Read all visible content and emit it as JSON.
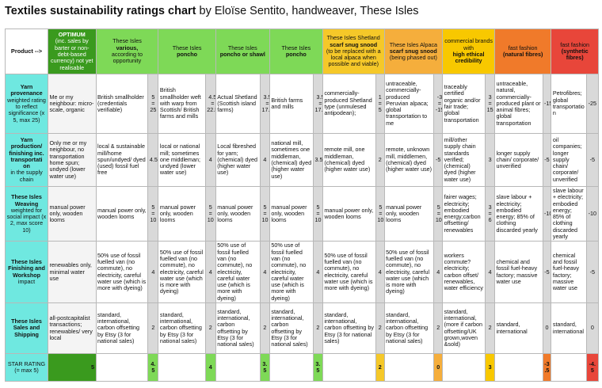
{
  "title": {
    "bold": "Textiles sustainability ratings chart",
    "rest": " by Eloïse Sentito, handweaver, These Isles"
  },
  "colors": {
    "row_label": "#6fe8e0",
    "optimum": "#3a9a1e",
    "green": "#7ed957",
    "yellow": "#f5c829",
    "amber": "#f5ae3c",
    "gold": "#f8c800",
    "orange": "#f07a2a",
    "red": "#e8463a"
  },
  "header": {
    "product_label": "Product -->",
    "columns": [
      {
        "lines": [
          "OPTIMUM",
          "(inc. sales by barter or non-debt-based currency) not yet realisable"
        ],
        "color": "#3a9a1e",
        "text_color": "#ffffff"
      },
      {
        "lines": [
          "These Isles",
          "various,",
          "according to opportunity"
        ],
        "color": "#7ed957"
      },
      {
        "lines": [
          "These Isles",
          "poncho"
        ],
        "color": "#7ed957"
      },
      {
        "lines": [
          "These Isles",
          "poncho or shawl"
        ],
        "color": "#7ed957"
      },
      {
        "lines": [
          "These Isles",
          "poncho"
        ],
        "color": "#7ed957"
      },
      {
        "lines": [
          "These Isles Shetland",
          "scarf snug snood",
          "(to be replaced with a local alpaca when possible and viable)"
        ],
        "color": "#f5c829"
      },
      {
        "lines": [
          "These Isles Alpaca",
          "scarf snug snood",
          "(being phased out)"
        ],
        "color": "#f5ae3c"
      },
      {
        "lines": [
          "commercial brands with",
          "high ethical credibility"
        ],
        "color": "#f8c800"
      },
      {
        "lines": [
          "fast fashion",
          "(natural fibres)"
        ],
        "color": "#f07a2a"
      },
      {
        "lines": [
          "fast fashion",
          "(synthetic fibres)"
        ],
        "color": "#e8463a"
      }
    ]
  },
  "rows": [
    {
      "label": "Yarn provenance",
      "sub": "weighted rating to reflect significance (x 5, max 25)",
      "cells": [
        {
          "text": "Me or my neighbour: micro-scale, organic",
          "score": ""
        },
        {
          "text": "British smallholder (credentials verifiable)",
          "score": "5 = 25"
        },
        {
          "text": "British smallholder weft with warp from Scottish/ British farms and mills",
          "score": "4.5 = 22.5"
        },
        {
          "text": "Actual Shetland (Scottish island farms)",
          "score": "3.5 = 17.5"
        },
        {
          "text": "British farms and mills",
          "score": "3.5 = 17.5"
        },
        {
          "text": "commercially-produced Shetland type (unmulesed antipodean);",
          "score": "1 = 5"
        },
        {
          "text": "untraceable, commercially-produced Peruvian alpaca; global transportation to me",
          "score": "-3 = -15"
        },
        {
          "text": "traceably certified organic and/or fair trade; global transportation",
          "score": "3 = 15"
        },
        {
          "text": "untraceable, natural, commercially-produced plant or animal fibres; global transportation",
          "score": "-15"
        },
        {
          "text": "Petrofibres; global transportation",
          "score": "-25"
        }
      ]
    },
    {
      "label": "Yarn production/ finishing inc. transportati on",
      "sub": "in the supply chain",
      "cells": [
        {
          "text": "Only me or my neighbour, no transportation home spun; undyed (lower water use)",
          "score": ""
        },
        {
          "text": "local & sustainable mill/home spun/undyed/ dyed (used) fossil fuel free",
          "score": "4.5"
        },
        {
          "text": "local or national mill; sometimes one middleman; undyed (lower water use)",
          "score": "4"
        },
        {
          "text": "Local fibreshed for yarn; (chemical) dyed (higher water use)",
          "score": "4"
        },
        {
          "text": "national mill, sometimes one middleman, (chemical) dyed (higher water use)",
          "score": "3.5"
        },
        {
          "text": "remote mill, one middleman, (chemical) dyed (higher water use)",
          "score": "2"
        },
        {
          "text": "remote, unknown mill, middlemen, (chemical) dyed (higher water use)",
          "score": "-5"
        },
        {
          "text": "mill/other supply chain standards verified; (chemical) dyed (higher water use)",
          "score": "3"
        },
        {
          "text": "longer supply chain/ corporate/ unverified",
          "score": "-5"
        },
        {
          "text": "oil companies; longer supply chain/ corporate/ unverified",
          "score": "-5"
        }
      ]
    },
    {
      "label": "These Isles Weaving",
      "sub": "weighted for social impact (x 2, max score 10)",
      "cells": [
        {
          "text": "manual power only, wooden looms",
          "score": ""
        },
        {
          "text": "manual power only, wooden looms",
          "score": "5 = 10"
        },
        {
          "text": "manual power only, wooden looms",
          "score": "5 = 10"
        },
        {
          "text": "manual power only, wooden looms",
          "score": "5 = 10"
        },
        {
          "text": "manual power only, wooden looms",
          "score": "5 = 10"
        },
        {
          "text": "manual power only, wooden looms",
          "score": "5 = 10"
        },
        {
          "text": "manual power only, wooden looms",
          "score": "5 = 10"
        },
        {
          "text": "fairer wages; electricity; embodied energy;carbon offsetting/ renewables",
          "score": "3 = 6"
        },
        {
          "text": "slave labour + electricity; embodied energy; 85% of clothing discarded yearly",
          "score": "-10"
        },
        {
          "text": "slave labour + electricity; embodied energy; 85% of clothing discarded yearly",
          "score": "-10"
        }
      ]
    },
    {
      "label": "These Isles Finishing and Workshop",
      "sub": "impact",
      "cells": [
        {
          "text": "renewables only, minimal water use",
          "score": ""
        },
        {
          "text": "50% use of fossil fuelled van (no commute), no electricity, careful water use (which is more with dyeing)",
          "score": "4"
        },
        {
          "text": "50% use of fossil fuelled van (no commute), no electricity, careful water use (which is more with dyeing)",
          "score": "4"
        },
        {
          "text": "50% use of fossil fuelled van (no commute), no electricity, careful water use (which is more with dyeing)",
          "score": "4"
        },
        {
          "text": "50% use of fossil fuelled van (no commute), no electricity, careful water use (which is more with dyeing)",
          "score": "4"
        },
        {
          "text": "50% use of fossil fuelled van (no commute), no electricity, careful water use (which is more with dyeing)",
          "score": "4"
        },
        {
          "text": "50% use of fossil fuelled van (no commute), no electricity, careful water use (which is more with dyeing)",
          "score": "4"
        },
        {
          "text": "workers commute? electricity; carbon offset/ renewables, water efficiency",
          "score": "4"
        },
        {
          "text": "chemical and fossil fuel-heavy factory; massive water use",
          "score": "-5"
        },
        {
          "text": "chemical and fossil fuel-heavy factory; massive water use",
          "score": "-5"
        }
      ]
    },
    {
      "label": "These Isles Sales and Shipping",
      "sub": "",
      "cells": [
        {
          "text": "all-postcapitalist transactions; renewables/ very local",
          "score": ""
        },
        {
          "text": "standard, international, carbon offsetting by Etsy (3 for national sales)",
          "score": "2"
        },
        {
          "text": "standard, international, carbon offsetting by Etsy (3 for national sales)",
          "score": "2"
        },
        {
          "text": "standard, international, carbon offsetting by Etsy (3 for national sales)",
          "score": "2"
        },
        {
          "text": "standard, international, carbon offsetting by Etsy (3 for national sales)",
          "score": "2"
        },
        {
          "text": "standard, international, carbon offsetting by Etsy (3 for national sales)",
          "score": "2"
        },
        {
          "text": "standard, international, carbon offsetting by Etsy (3 for national sales)",
          "score": "2"
        },
        {
          "text": "standard, international, (more if carbon offsetting/UK grown,woven &sold)",
          "score": "2"
        },
        {
          "text": "standard, international",
          "score": "0"
        },
        {
          "text": "standard, international",
          "score": "0"
        }
      ]
    }
  ],
  "stars": {
    "label": "STAR RATING (= max 5)",
    "values": [
      "5",
      "4.5",
      "4",
      "3.5",
      "3.5",
      "2",
      "0",
      "3",
      "-3.5",
      "-4.5"
    ],
    "colors": [
      "#3a9a1e",
      "#7ed957",
      "#7ed957",
      "#7ed957",
      "#7ed957",
      "#f5c829",
      "#f5ae3c",
      "#f8c800",
      "#f07a2a",
      "#e8463a"
    ]
  }
}
